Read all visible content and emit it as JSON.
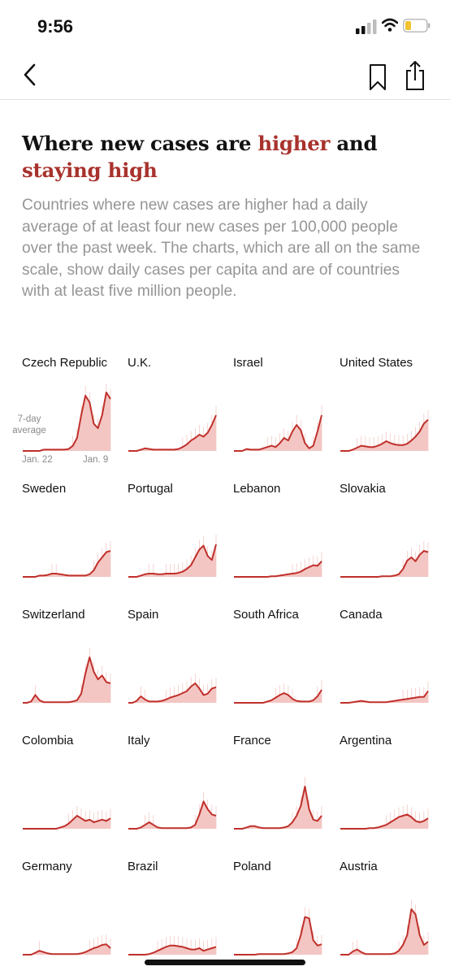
{
  "status": {
    "time": "9:56"
  },
  "colors": {
    "accent": "#a8322d",
    "line": "#c0302b",
    "fill": "#f3c6c3",
    "summary": "#959595"
  },
  "nav": {
    "back_icon": "chevron-left-icon",
    "bookmark_icon": "bookmark-icon",
    "share_icon": "share-icon"
  },
  "headline": {
    "part1": "Where new cases are ",
    "highlight1": "higher",
    "part2": " and ",
    "highlight2": "staying high"
  },
  "summary": "Countries where new cases are higher had a daily average of at least four new cases per 100,000 people over the past week. The charts, which are all on the same scale, show daily cases per capita and are of countries with at least five million people.",
  "annotation": {
    "label_line1": "7-day",
    "label_line2": "average",
    "x_start": "Jan. 22",
    "x_end": "Jan. 9"
  },
  "countries": [
    {
      "name": "Czech Republic",
      "values": [
        0,
        0,
        0,
        0,
        0,
        0.02,
        0.02,
        0.02,
        0.02,
        0.02,
        0.02,
        0.03,
        0.08,
        0.2,
        0.55,
        0.85,
        0.75,
        0.42,
        0.35,
        0.55,
        0.9,
        0.8
      ]
    },
    {
      "name": "U.K.",
      "values": [
        0,
        0,
        0,
        0.02,
        0.04,
        0.03,
        0.02,
        0.02,
        0.02,
        0.02,
        0.02,
        0.02,
        0.03,
        0.06,
        0.1,
        0.16,
        0.2,
        0.25,
        0.22,
        0.28,
        0.4,
        0.55
      ]
    },
    {
      "name": "Israel",
      "values": [
        0,
        0,
        0,
        0.03,
        0.02,
        0.02,
        0.02,
        0.04,
        0.06,
        0.08,
        0.06,
        0.12,
        0.2,
        0.16,
        0.3,
        0.4,
        0.32,
        0.12,
        0.04,
        0.08,
        0.3,
        0.55
      ]
    },
    {
      "name": "United States",
      "values": [
        0,
        0,
        0,
        0.02,
        0.05,
        0.08,
        0.07,
        0.06,
        0.06,
        0.08,
        0.11,
        0.15,
        0.12,
        0.1,
        0.09,
        0.09,
        0.11,
        0.16,
        0.22,
        0.3,
        0.42,
        0.48
      ]
    },
    {
      "name": "Sweden",
      "values": [
        0,
        0,
        0,
        0,
        0.02,
        0.02,
        0.03,
        0.05,
        0.05,
        0.04,
        0.03,
        0.02,
        0.02,
        0.02,
        0.02,
        0.02,
        0.04,
        0.1,
        0.22,
        0.3,
        0.38,
        0.4
      ]
    },
    {
      "name": "Portugal",
      "values": [
        0,
        0,
        0,
        0.02,
        0.04,
        0.05,
        0.05,
        0.04,
        0.04,
        0.05,
        0.05,
        0.05,
        0.06,
        0.08,
        0.12,
        0.18,
        0.3,
        0.42,
        0.48,
        0.32,
        0.26,
        0.5
      ]
    },
    {
      "name": "Lebanon",
      "values": [
        0,
        0,
        0,
        0,
        0,
        0,
        0,
        0,
        0,
        0.01,
        0.01,
        0.02,
        0.03,
        0.04,
        0.05,
        0.06,
        0.08,
        0.12,
        0.15,
        0.18,
        0.17,
        0.24
      ]
    },
    {
      "name": "Slovakia",
      "values": [
        0,
        0,
        0,
        0,
        0,
        0,
        0,
        0,
        0,
        0,
        0.01,
        0.01,
        0.01,
        0.02,
        0.04,
        0.12,
        0.25,
        0.3,
        0.24,
        0.34,
        0.4,
        0.38
      ]
    },
    {
      "name": "Switzerland",
      "values": [
        0,
        0,
        0.02,
        0.12,
        0.04,
        0.01,
        0.01,
        0.01,
        0.01,
        0.01,
        0.01,
        0.01,
        0.02,
        0.04,
        0.14,
        0.45,
        0.7,
        0.48,
        0.36,
        0.42,
        0.32,
        0.3
      ]
    },
    {
      "name": "Spain",
      "values": [
        0,
        0,
        0.03,
        0.1,
        0.05,
        0.02,
        0.02,
        0.02,
        0.03,
        0.05,
        0.08,
        0.1,
        0.12,
        0.15,
        0.18,
        0.25,
        0.3,
        0.22,
        0.12,
        0.14,
        0.22,
        0.24
      ]
    },
    {
      "name": "South Africa",
      "values": [
        0,
        0,
        0,
        0,
        0,
        0,
        0,
        0,
        0.02,
        0.04,
        0.08,
        0.12,
        0.15,
        0.12,
        0.06,
        0.03,
        0.02,
        0.02,
        0.02,
        0.04,
        0.1,
        0.2
      ]
    },
    {
      "name": "Canada",
      "values": [
        0,
        0,
        0,
        0.01,
        0.02,
        0.03,
        0.02,
        0.01,
        0.01,
        0.01,
        0.01,
        0.01,
        0.02,
        0.03,
        0.04,
        0.05,
        0.06,
        0.07,
        0.08,
        0.09,
        0.09,
        0.18
      ]
    },
    {
      "name": "Colombia",
      "values": [
        0,
        0,
        0,
        0,
        0,
        0,
        0,
        0,
        0,
        0.02,
        0.04,
        0.08,
        0.14,
        0.2,
        0.16,
        0.12,
        0.14,
        0.1,
        0.12,
        0.14,
        0.12,
        0.16
      ]
    },
    {
      "name": "Italy",
      "values": [
        0,
        0,
        0,
        0.02,
        0.06,
        0.1,
        0.06,
        0.02,
        0.01,
        0.01,
        0.01,
        0.01,
        0.01,
        0.01,
        0.01,
        0.02,
        0.06,
        0.22,
        0.42,
        0.3,
        0.22,
        0.2
      ]
    },
    {
      "name": "France",
      "values": [
        0,
        0,
        0,
        0.02,
        0.04,
        0.04,
        0.02,
        0.01,
        0.01,
        0.01,
        0.01,
        0.01,
        0.02,
        0.04,
        0.1,
        0.2,
        0.35,
        0.65,
        0.3,
        0.14,
        0.12,
        0.2
      ]
    },
    {
      "name": "Argentina",
      "values": [
        0,
        0,
        0,
        0,
        0,
        0,
        0,
        0.01,
        0.01,
        0.02,
        0.04,
        0.06,
        0.1,
        0.14,
        0.18,
        0.2,
        0.22,
        0.18,
        0.12,
        0.1,
        0.12,
        0.16
      ]
    },
    {
      "name": "Germany",
      "values": [
        0,
        0,
        0,
        0.03,
        0.06,
        0.04,
        0.02,
        0.01,
        0.01,
        0.01,
        0.01,
        0.01,
        0.01,
        0.01,
        0.02,
        0.04,
        0.07,
        0.1,
        0.12,
        0.15,
        0.16,
        0.1
      ]
    },
    {
      "name": "Brazil",
      "values": [
        0,
        0,
        0,
        0,
        0,
        0.01,
        0.03,
        0.06,
        0.09,
        0.12,
        0.14,
        0.14,
        0.13,
        0.12,
        0.1,
        0.08,
        0.08,
        0.1,
        0.06,
        0.08,
        0.1,
        0.12
      ]
    },
    {
      "name": "Poland",
      "values": [
        0,
        0,
        0,
        0,
        0,
        0,
        0.01,
        0.01,
        0.01,
        0.01,
        0.01,
        0.01,
        0.01,
        0.02,
        0.04,
        0.1,
        0.3,
        0.58,
        0.56,
        0.22,
        0.14,
        0.16
      ]
    },
    {
      "name": "Austria",
      "values": [
        0,
        0,
        0,
        0.05,
        0.08,
        0.04,
        0.01,
        0.01,
        0.01,
        0.01,
        0.01,
        0.01,
        0.01,
        0.02,
        0.06,
        0.15,
        0.3,
        0.7,
        0.62,
        0.3,
        0.15,
        0.2
      ]
    }
  ]
}
